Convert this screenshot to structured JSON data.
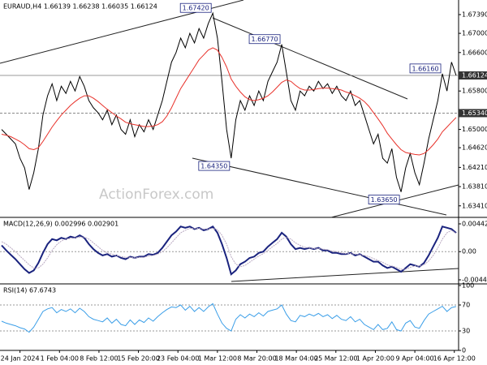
{
  "chart_data": [
    {
      "type": "line",
      "title": "EURAUD,H4 1.66139 1.66238 1.66035 1.66124",
      "watermark": "ActionForex.com",
      "xlim": [
        0,
        99
      ],
      "ylim": [
        1.6317,
        1.6766
      ],
      "yticks": [
        {
          "value": 1.6739,
          "label": "1.67390"
        },
        {
          "value": 1.67,
          "label": "1.67000"
        },
        {
          "value": 1.666,
          "label": "1.66600"
        },
        {
          "value": 1.658,
          "label": "1.65800"
        },
        {
          "value": 1.65,
          "label": "1.65000"
        },
        {
          "value": 1.6462,
          "label": "1.64620"
        },
        {
          "value": 1.6421,
          "label": "1.64210"
        },
        {
          "value": 1.6381,
          "label": "1.63810"
        },
        {
          "value": 1.6341,
          "label": "1.63410"
        }
      ],
      "levels": [
        1.66124,
        {
          "value": 1.6534,
          "label": "1.65340"
        }
      ],
      "annotations": [
        {
          "index": 46,
          "value": 1.6742,
          "label": "1.67420"
        },
        {
          "index": 61,
          "value": 1.6677,
          "label": "1.66770"
        },
        {
          "index": 96,
          "value": 1.6616,
          "label": "1.66160"
        },
        {
          "index": 50,
          "value": 1.6435,
          "label": "1.64350"
        },
        {
          "index": 87,
          "value": 1.6365,
          "label": "1.63650"
        }
      ],
      "series": [
        {
          "color": "#000000",
          "values": [
            1.65,
            1.649,
            1.648,
            1.647,
            1.644,
            1.642,
            1.6375,
            1.641,
            1.646,
            1.653,
            1.657,
            1.6595,
            1.656,
            1.659,
            1.6575,
            1.66,
            1.658,
            1.661,
            1.659,
            1.656,
            1.6545,
            1.6535,
            1.652,
            1.654,
            1.651,
            1.653,
            1.65,
            1.649,
            1.652,
            1.6485,
            1.651,
            1.6495,
            1.652,
            1.65,
            1.653,
            1.656,
            1.66,
            1.664,
            1.666,
            1.669,
            1.667,
            1.67,
            1.668,
            1.671,
            1.669,
            1.672,
            1.6742,
            1.669,
            1.66,
            1.65,
            1.644,
            1.652,
            1.656,
            1.654,
            1.657,
            1.655,
            1.658,
            1.656,
            1.66,
            1.662,
            1.664,
            1.6677,
            1.662,
            1.656,
            1.654,
            1.658,
            1.657,
            1.659,
            1.658,
            1.66,
            1.6585,
            1.6595,
            1.6575,
            1.659,
            1.657,
            1.656,
            1.658,
            1.655,
            1.656,
            1.653,
            1.65,
            1.647,
            1.649,
            1.644,
            1.643,
            1.646,
            1.64,
            1.637,
            1.642,
            1.645,
            1.641,
            1.6385,
            1.643,
            1.648,
            1.652,
            1.656,
            1.6616,
            1.658,
            1.664,
            1.66124
          ]
        },
        {
          "color": "#e8312a",
          "values": [
            1.649,
            1.6488,
            1.6485,
            1.648,
            1.6475,
            1.6468,
            1.646,
            1.6458,
            1.6462,
            1.6475,
            1.649,
            1.6505,
            1.6518,
            1.653,
            1.654,
            1.655,
            1.6558,
            1.6565,
            1.657,
            1.657,
            1.6565,
            1.6558,
            1.655,
            1.6542,
            1.6535,
            1.6528,
            1.6522,
            1.6515,
            1.6512,
            1.651,
            1.6508,
            1.6506,
            1.6506,
            1.6507,
            1.651,
            1.6516,
            1.6528,
            1.6545,
            1.6565,
            1.6585,
            1.66,
            1.6615,
            1.663,
            1.6645,
            1.6655,
            1.6665,
            1.667,
            1.6665,
            1.665,
            1.663,
            1.6605,
            1.659,
            1.6578,
            1.6568,
            1.6562,
            1.656,
            1.6562,
            1.6565,
            1.657,
            1.6578,
            1.6588,
            1.6598,
            1.6603,
            1.66,
            1.6592,
            1.6585,
            1.6582,
            1.6582,
            1.6583,
            1.6585,
            1.6586,
            1.6586,
            1.6585,
            1.6584,
            1.6582,
            1.6578,
            1.6575,
            1.657,
            1.6565,
            1.6558,
            1.6548,
            1.6535,
            1.6522,
            1.6508,
            1.6492,
            1.648,
            1.6468,
            1.6458,
            1.6452,
            1.645,
            1.6448,
            1.6447,
            1.645,
            1.6458,
            1.6468,
            1.648,
            1.6495,
            1.6505,
            1.6515,
            1.6525
          ]
        }
      ]
    },
    {
      "type": "line",
      "title": "MACD(12,26,9) 0.002996 0.002901",
      "xlim": [
        0,
        99
      ],
      "ylim": [
        -0.004881,
        0.005202
      ],
      "yticks": [
        0.004426,
        {
          "value": 0,
          "label": "0.00"
        },
        -0.004493
      ],
      "series": [
        {
          "color": "#1a237e",
          "values": [
            0.001,
            0.0002,
            -0.0005,
            -0.0012,
            -0.002,
            -0.0028,
            -0.0034,
            -0.003,
            -0.0018,
            -0.0002,
            0.0012,
            0.002,
            0.0018,
            0.0022,
            0.002,
            0.0024,
            0.0022,
            0.0026,
            0.0022,
            0.0012,
            0.0004,
            -0.0002,
            -0.0006,
            -0.0004,
            -0.0008,
            -0.0006,
            -0.001,
            -0.0012,
            -0.0008,
            -0.001,
            -0.0008,
            -0.0008,
            -0.0004,
            -0.0005,
            -0.0002,
            0.0006,
            0.0016,
            0.0026,
            0.0032,
            0.004,
            0.0038,
            0.004,
            0.0036,
            0.0038,
            0.0034,
            0.0036,
            0.004,
            0.003,
            0.0012,
            -0.001,
            -0.0036,
            -0.003,
            -0.002,
            -0.0016,
            -0.001,
            -0.0008,
            -0.0002,
            0.0,
            0.0008,
            0.0014,
            0.002,
            0.003,
            0.0024,
            0.0012,
            0.0004,
            0.0006,
            0.0004,
            0.0006,
            0.0004,
            0.0006,
            0.0002,
            0.0002,
            -0.0002,
            -0.0002,
            -0.0004,
            -0.0004,
            -0.0002,
            -0.0006,
            -0.0004,
            -0.0008,
            -0.0012,
            -0.0016,
            -0.0016,
            -0.0022,
            -0.0026,
            -0.0024,
            -0.0028,
            -0.0032,
            -0.0026,
            -0.002,
            -0.0022,
            -0.0024,
            -0.0018,
            -0.0006,
            0.0008,
            0.0022,
            0.004,
            0.0038,
            0.0036,
            0.002996
          ]
        },
        {
          "color": "#b8a8c0",
          "values": [
            0.0016,
            0.0012,
            0.0006,
            0.0,
            -0.0007,
            -0.0014,
            -0.0021,
            -0.0026,
            -0.0026,
            -0.002,
            -0.001,
            0.0002,
            0.0011,
            0.0017,
            0.002,
            0.0021,
            0.0022,
            0.0023,
            0.0023,
            0.002,
            0.0014,
            0.0008,
            0.0002,
            -0.0002,
            -0.0004,
            -0.0006,
            -0.0008,
            -0.0009,
            -0.0009,
            -0.001,
            -0.0009,
            -0.0009,
            -0.0007,
            -0.0006,
            -0.0004,
            0.0,
            0.0006,
            0.0014,
            0.0022,
            0.003,
            0.0034,
            0.0037,
            0.0037,
            0.0037,
            0.0036,
            0.0036,
            0.0037,
            0.0035,
            0.0026,
            0.0012,
            -0.0008,
            -0.002,
            -0.0024,
            -0.0022,
            -0.0017,
            -0.0012,
            -0.0007,
            -0.0003,
            0.0002,
            0.0008,
            0.0013,
            0.002,
            0.0023,
            0.002,
            0.0014,
            0.001,
            0.0007,
            0.0006,
            0.0005,
            0.0005,
            0.0004,
            0.0003,
            0.0001,
            0.0,
            -0.0002,
            -0.0003,
            -0.0003,
            -0.0004,
            -0.0005,
            -0.0006,
            -0.0008,
            -0.0011,
            -0.0014,
            -0.0017,
            -0.0021,
            -0.0023,
            -0.0025,
            -0.0028,
            -0.0028,
            -0.0025,
            -0.0023,
            -0.0023,
            -0.0021,
            -0.0015,
            -0.0006,
            0.0006,
            0.002,
            0.003,
            0.0034,
            0.002901
          ]
        }
      ]
    },
    {
      "type": "line",
      "title": "RSI(14) 67.6743",
      "xlim": [
        0,
        99
      ],
      "ylim": [
        0,
        100
      ],
      "yticks": [
        100,
        70,
        30,
        0
      ],
      "dotted": [
        70,
        30
      ],
      "xticks": [
        {
          "value": 4,
          "label": "24 Jan 2024"
        },
        {
          "value": 12.6,
          "label": "1 Feb 04:00"
        },
        {
          "value": 21.2,
          "label": "8 Feb 12:00"
        },
        {
          "value": 29.8,
          "label": "15 Feb 20:00"
        },
        {
          "value": 38.4,
          "label": "23 Feb 04:00"
        },
        {
          "value": 47,
          "label": "1 Mar 12:00"
        },
        {
          "value": 55.6,
          "label": "8 Mar 20:00"
        },
        {
          "value": 64.2,
          "label": "18 Mar 04:00"
        },
        {
          "value": 72.8,
          "label": "25 Mar 12:00"
        },
        {
          "value": 81.4,
          "label": "1 Apr 20:00"
        },
        {
          "value": 90,
          "label": "9 Apr 04:00"
        },
        {
          "value": 98.6,
          "label": "16 Apr 12:00"
        }
      ],
      "series": [
        {
          "color": "#3a9ee8",
          "values": [
            45,
            42,
            40,
            38,
            35,
            33,
            28,
            36,
            48,
            60,
            64,
            66,
            58,
            63,
            60,
            64,
            58,
            65,
            60,
            52,
            48,
            46,
            44,
            50,
            42,
            48,
            40,
            38,
            47,
            40,
            47,
            43,
            50,
            45,
            52,
            58,
            63,
            67,
            66,
            70,
            62,
            68,
            60,
            66,
            60,
            67,
            72,
            56,
            42,
            34,
            30,
            48,
            55,
            50,
            56,
            52,
            58,
            53,
            60,
            62,
            64,
            70,
            56,
            46,
            44,
            54,
            52,
            56,
            53,
            57,
            52,
            55,
            49,
            54,
            48,
            46,
            52,
            44,
            48,
            40,
            36,
            32,
            40,
            32,
            34,
            44,
            32,
            30,
            42,
            46,
            36,
            34,
            46,
            56,
            60,
            64,
            68,
            60,
            66,
            67.6743
          ]
        }
      ]
    }
  ]
}
